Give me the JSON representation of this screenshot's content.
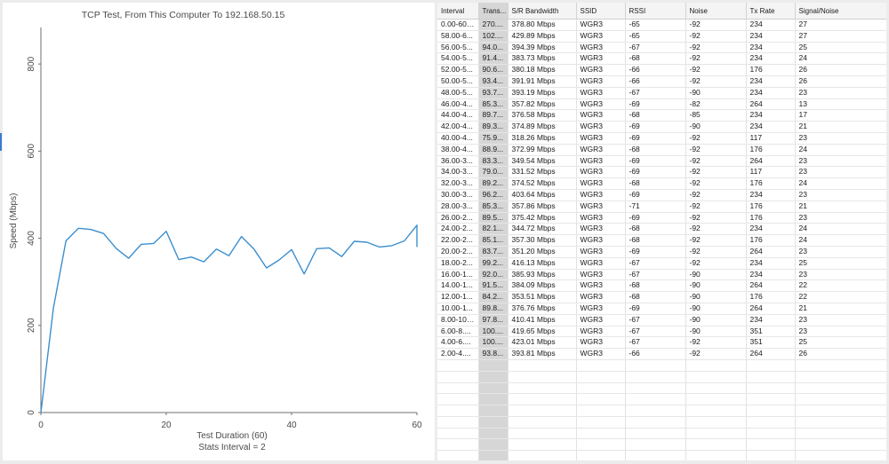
{
  "chart": {
    "title": "TCP Test,  From This Computer To 192.168.50.15",
    "ylabel": "Speed (Mbps)",
    "xlabel": "Test Duration (60)",
    "stats_label": "Stats Interval = 2"
  },
  "chart_data": {
    "type": "line",
    "title": "TCP Test,  From This Computer To 192.168.50.15",
    "xlabel": "Test Duration (60)",
    "ylabel": "Speed (Mbps)",
    "xlim": [
      0,
      60
    ],
    "ylim": [
      0,
      900
    ],
    "xticks": [
      0,
      20,
      40,
      60
    ],
    "yticks": [
      0,
      200,
      400,
      600,
      800
    ],
    "grid": false,
    "series": [
      {
        "color": "#3b8fd0",
        "x": [
          0,
          2,
          4,
          6,
          8,
          10,
          12,
          14,
          16,
          18,
          20,
          22,
          24,
          26,
          28,
          30,
          32,
          34,
          36,
          38,
          40,
          42,
          44,
          46,
          48,
          50,
          52,
          54,
          56,
          58,
          60,
          60
        ],
        "y": [
          0,
          240,
          394,
          423,
          420,
          411,
          377,
          354,
          386,
          388,
          416,
          351,
          357,
          346,
          375,
          360,
          404,
          375,
          332,
          350,
          374,
          318,
          376,
          378,
          358,
          393,
          391,
          380,
          383,
          394,
          430,
          380
        ]
      }
    ]
  },
  "table": {
    "columns": [
      "Interval",
      "Trans...",
      "S/R Bandwidth",
      "SSID",
      "RSSI",
      "Noise",
      "Tx Rate",
      "Signal/Noise"
    ],
    "rows": [
      [
        "0.00-60....",
        "270....",
        "378.80 Mbps",
        "WGR3",
        "-65",
        "-92",
        "234",
        "27"
      ],
      [
        "58.00-6...",
        "102....",
        "429.89 Mbps",
        "WGR3",
        "-65",
        "-92",
        "234",
        "27"
      ],
      [
        "56.00-5...",
        "94.0...",
        "394.39 Mbps",
        "WGR3",
        "-67",
        "-92",
        "234",
        "25"
      ],
      [
        "54.00-5...",
        "91.4...",
        "383.73 Mbps",
        "WGR3",
        "-68",
        "-92",
        "234",
        "24"
      ],
      [
        "52.00-5...",
        "90.6...",
        "380.18 Mbps",
        "WGR3",
        "-66",
        "-92",
        "176",
        "26"
      ],
      [
        "50.00-5...",
        "93.4...",
        "391.91 Mbps",
        "WGR3",
        "-66",
        "-92",
        "234",
        "26"
      ],
      [
        "48.00-5...",
        "93.7...",
        "393.19 Mbps",
        "WGR3",
        "-67",
        "-90",
        "234",
        "23"
      ],
      [
        "46.00-4...",
        "85.3...",
        "357.82 Mbps",
        "WGR3",
        "-69",
        "-82",
        "264",
        "13"
      ],
      [
        "44.00-4...",
        "89.7...",
        "376.58 Mbps",
        "WGR3",
        "-68",
        "-85",
        "234",
        "17"
      ],
      [
        "42.00-4...",
        "89.3...",
        "374.89 Mbps",
        "WGR3",
        "-69",
        "-90",
        "234",
        "21"
      ],
      [
        "40.00-4...",
        "75.9...",
        "318.26 Mbps",
        "WGR3",
        "-69",
        "-92",
        "117",
        "23"
      ],
      [
        "38.00-4...",
        "88.9...",
        "372.99 Mbps",
        "WGR3",
        "-68",
        "-92",
        "176",
        "24"
      ],
      [
        "36.00-3...",
        "83.3...",
        "349.54 Mbps",
        "WGR3",
        "-69",
        "-92",
        "264",
        "23"
      ],
      [
        "34.00-3...",
        "79.0...",
        "331.52 Mbps",
        "WGR3",
        "-69",
        "-92",
        "117",
        "23"
      ],
      [
        "32.00-3...",
        "89.2...",
        "374.52 Mbps",
        "WGR3",
        "-68",
        "-92",
        "176",
        "24"
      ],
      [
        "30.00-3...",
        "96.2...",
        "403.64 Mbps",
        "WGR3",
        "-69",
        "-92",
        "234",
        "23"
      ],
      [
        "28.00-3...",
        "85.3...",
        "357.86 Mbps",
        "WGR3",
        "-71",
        "-92",
        "176",
        "21"
      ],
      [
        "26.00-2...",
        "89.5...",
        "375.42 Mbps",
        "WGR3",
        "-69",
        "-92",
        "176",
        "23"
      ],
      [
        "24.00-2...",
        "82.1...",
        "344.72 Mbps",
        "WGR3",
        "-68",
        "-92",
        "234",
        "24"
      ],
      [
        "22.00-2...",
        "85.1...",
        "357.30 Mbps",
        "WGR3",
        "-68",
        "-92",
        "176",
        "24"
      ],
      [
        "20.00-2...",
        "83.7...",
        "351.20 Mbps",
        "WGR3",
        "-69",
        "-92",
        "264",
        "23"
      ],
      [
        "18.00-2...",
        "99.2...",
        "416.13 Mbps",
        "WGR3",
        "-67",
        "-92",
        "234",
        "25"
      ],
      [
        "16.00-1...",
        "92.0...",
        "385.93 Mbps",
        "WGR3",
        "-67",
        "-90",
        "234",
        "23"
      ],
      [
        "14.00-1...",
        "91.5...",
        "384.09 Mbps",
        "WGR3",
        "-68",
        "-90",
        "264",
        "22"
      ],
      [
        "12.00-1...",
        "84.2...",
        "353.51 Mbps",
        "WGR3",
        "-68",
        "-90",
        "176",
        "22"
      ],
      [
        "10.00-1...",
        "89.8...",
        "376.76 Mbps",
        "WGR3",
        "-69",
        "-90",
        "264",
        "21"
      ],
      [
        "8.00-10....",
        "97.8...",
        "410.41 Mbps",
        "WGR3",
        "-67",
        "-90",
        "234",
        "23"
      ],
      [
        "6.00-8....",
        "100....",
        "419.65 Mbps",
        "WGR3",
        "-67",
        "-90",
        "351",
        "23"
      ],
      [
        "4.00-6....",
        "100....",
        "423.01 Mbps",
        "WGR3",
        "-67",
        "-92",
        "351",
        "25"
      ],
      [
        "2.00-4....",
        "93.8...",
        "393.81 Mbps",
        "WGR3",
        "-66",
        "-92",
        "264",
        "26"
      ]
    ],
    "empty_rows": 10
  }
}
